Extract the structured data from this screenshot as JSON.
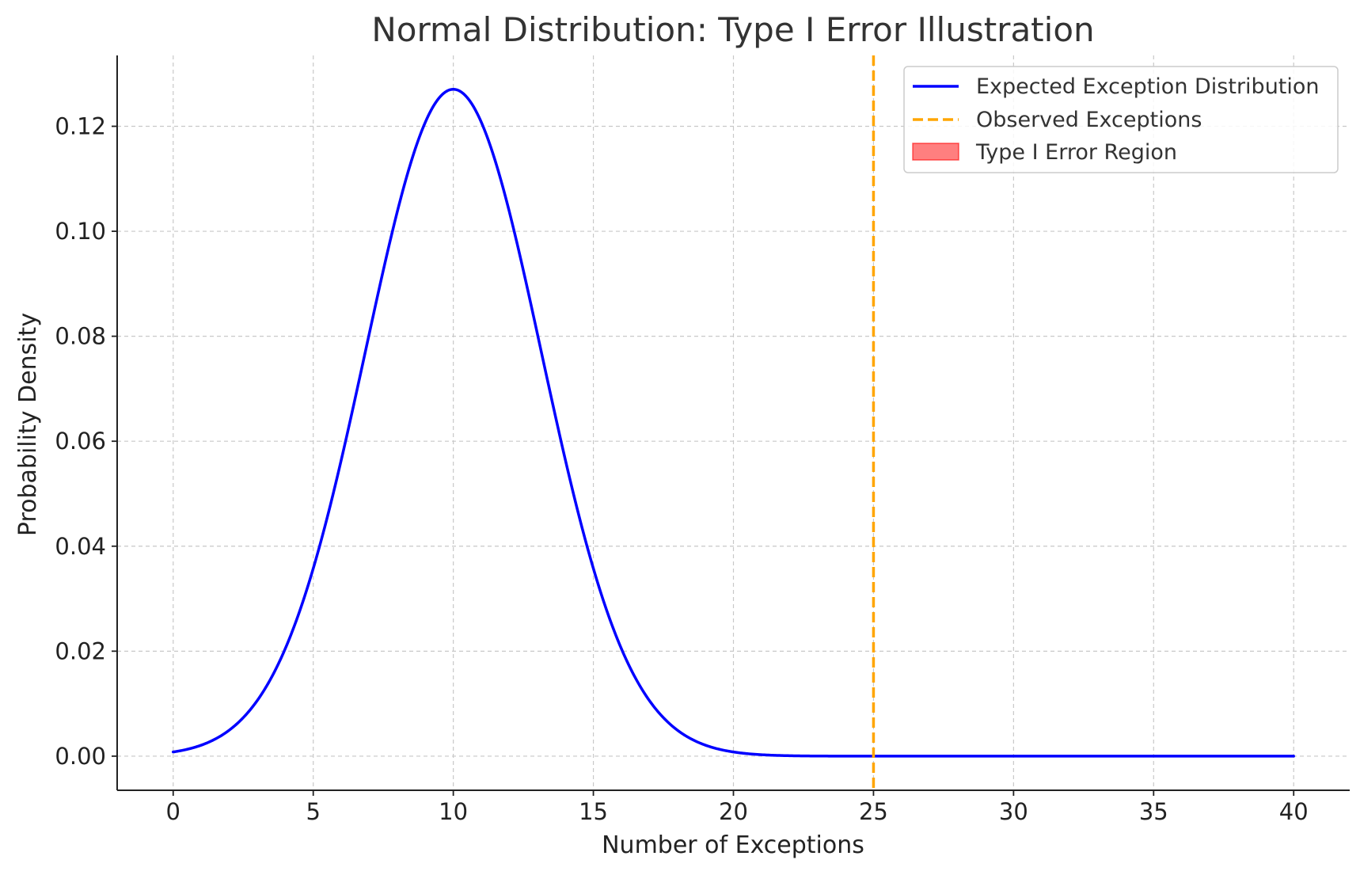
{
  "chart_data": {
    "type": "line",
    "title": "Normal Distribution: Type I Error Illustration",
    "xlabel": "Number of Exceptions",
    "ylabel": "Probability Density",
    "xlim": [
      -2,
      42
    ],
    "ylim": [
      -0.0065,
      0.1335
    ],
    "xticks": [
      0,
      5,
      10,
      15,
      20,
      25,
      30,
      35,
      40
    ],
    "xtick_labels": [
      "0",
      "5",
      "10",
      "15",
      "20",
      "25",
      "30",
      "35",
      "40"
    ],
    "yticks": [
      0.0,
      0.02,
      0.04,
      0.06,
      0.08,
      0.1,
      0.12
    ],
    "ytick_labels": [
      "0.00",
      "0.02",
      "0.04",
      "0.06",
      "0.08",
      "0.10",
      "0.12"
    ],
    "grid": true,
    "legend_position": "top-right",
    "series": [
      {
        "name": "Expected Exception Distribution",
        "kind": "line",
        "color": "#0000ff",
        "style": "solid",
        "distribution": {
          "family": "normal",
          "mean": 10,
          "std": 3.14
        },
        "x_range": [
          0,
          40
        ],
        "sample_points": [
          {
            "x": 0,
            "y": 0.0008
          },
          {
            "x": 2,
            "y": 0.005
          },
          {
            "x": 4,
            "y": 0.0205
          },
          {
            "x": 5,
            "y": 0.0359
          },
          {
            "x": 6,
            "y": 0.0565
          },
          {
            "x": 8,
            "y": 0.104
          },
          {
            "x": 10,
            "y": 0.127
          },
          {
            "x": 12,
            "y": 0.104
          },
          {
            "x": 14,
            "y": 0.0565
          },
          {
            "x": 15,
            "y": 0.0359
          },
          {
            "x": 16,
            "y": 0.0205
          },
          {
            "x": 18,
            "y": 0.005
          },
          {
            "x": 20,
            "y": 0.0008
          },
          {
            "x": 25,
            "y": 0.0
          },
          {
            "x": 30,
            "y": 0.0
          },
          {
            "x": 40,
            "y": 0.0
          }
        ]
      },
      {
        "name": "Observed Exceptions",
        "kind": "vline",
        "x": 25,
        "color": "#ffa500",
        "style": "dashed"
      },
      {
        "name": "Type I Error Region",
        "kind": "fill",
        "from_x": 25,
        "to_x": 40,
        "color": "#ff0000",
        "alpha": 0.5
      }
    ]
  }
}
